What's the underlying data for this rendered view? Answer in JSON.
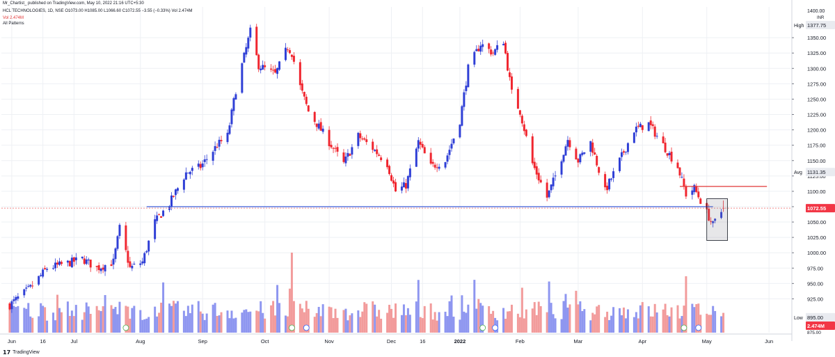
{
  "header": {
    "published_line": "Mr_Chartist_ published on TradingView.com, May 10, 2022 21:16 UTC+5:30",
    "symbol_line": "HCL TECHNOLOGIES, 1D, NSE  O1073.00 H1085.00 L1066.60 C1072.55 −3.55 (−0.33%)  Vol 2.474M",
    "volume_line": "Vol  2.474M",
    "indicator_line": "All Patterns"
  },
  "price_axis": {
    "currency": "INR",
    "currency_top": "1400.00",
    "high_label": "High",
    "high_value": "1377.75",
    "avg_label": "Avg",
    "avg_value": "1131.35",
    "low_label": "Low",
    "low_value": "895.00",
    "last_price": "1072.55",
    "last_volume": "2.474M",
    "below_low": "875.00"
  },
  "footer": {
    "brand": "TradingView"
  },
  "colors": {
    "up": "#2f3fd6",
    "down": "#f0262f",
    "vol_up": "#8e96f0",
    "vol_down": "#f29b9b",
    "support_line": "#3b5bd8",
    "resistance_line": "#e23636",
    "last_price_line": "#f28b8b",
    "grid": "#eef0f4"
  },
  "chart_data": {
    "type": "candlestick",
    "title": "HCL TECHNOLOGIES, 1D, NSE",
    "ylim": [
      870,
      1400
    ],
    "yticks": [
      875,
      895,
      925,
      950,
      975,
      1000,
      1025,
      1050,
      1075,
      1100,
      1125,
      1150,
      1175,
      1200,
      1225,
      1250,
      1275,
      1300,
      1325,
      1350,
      1377.75
    ],
    "xticks": [
      "Jun",
      "16",
      "Jul",
      "Aug",
      "Sep",
      "Oct",
      "Nov",
      "Dec",
      "16",
      "2022",
      "Feb",
      "Mar",
      "Apr",
      "May",
      "Jun"
    ],
    "series": [
      {
        "name": "close",
        "anchors": [
          [
            "2021-05-31",
            915
          ],
          [
            "2021-06-10",
            943
          ],
          [
            "2021-06-18",
            975
          ],
          [
            "2021-06-28",
            983
          ],
          [
            "2021-07-05",
            990
          ],
          [
            "2021-07-12",
            975
          ],
          [
            "2021-07-20",
            985
          ],
          [
            "2021-07-23",
            1040
          ],
          [
            "2021-07-28",
            975
          ],
          [
            "2021-08-03",
            985
          ],
          [
            "2021-08-09",
            1050
          ],
          [
            "2021-08-16",
            1080
          ],
          [
            "2021-08-24",
            1130
          ],
          [
            "2021-08-31",
            1140
          ],
          [
            "2021-09-08",
            1175
          ],
          [
            "2021-09-13",
            1190
          ],
          [
            "2021-09-17",
            1265
          ],
          [
            "2021-09-24",
            1360
          ],
          [
            "2021-09-28",
            1305
          ],
          [
            "2021-10-06",
            1290
          ],
          [
            "2021-10-12",
            1335
          ],
          [
            "2021-10-14",
            1325
          ],
          [
            "2021-10-18",
            1270
          ],
          [
            "2021-10-22",
            1230
          ],
          [
            "2021-11-01",
            1180
          ],
          [
            "2021-11-08",
            1145
          ],
          [
            "2021-11-15",
            1190
          ],
          [
            "2021-11-22",
            1170
          ],
          [
            "2021-11-29",
            1145
          ],
          [
            "2021-12-03",
            1100
          ],
          [
            "2021-12-08",
            1110
          ],
          [
            "2021-12-14",
            1180
          ],
          [
            "2021-12-20",
            1140
          ],
          [
            "2021-12-27",
            1150
          ],
          [
            "2022-01-03",
            1215
          ],
          [
            "2022-01-07",
            1300
          ],
          [
            "2022-01-13",
            1340
          ],
          [
            "2022-01-19",
            1325
          ],
          [
            "2022-01-24",
            1345
          ],
          [
            "2022-01-28",
            1260
          ],
          [
            "2022-02-01",
            1230
          ],
          [
            "2022-02-07",
            1145
          ],
          [
            "2022-02-14",
            1090
          ],
          [
            "2022-02-18",
            1125
          ],
          [
            "2022-02-24",
            1185
          ],
          [
            "2022-03-01",
            1150
          ],
          [
            "2022-03-07",
            1180
          ],
          [
            "2022-03-14",
            1100
          ],
          [
            "2022-03-21",
            1150
          ],
          [
            "2022-03-28",
            1200
          ],
          [
            "2022-04-04",
            1210
          ],
          [
            "2022-04-11",
            1175
          ],
          [
            "2022-04-18",
            1140
          ],
          [
            "2022-04-22",
            1095
          ],
          [
            "2022-04-26",
            1105
          ],
          [
            "2022-05-02",
            1065
          ],
          [
            "2022-05-05",
            1045
          ],
          [
            "2022-05-10",
            1072.55
          ]
        ]
      },
      {
        "name": "volume",
        "max_m": 10.0,
        "last_m": 2.474
      }
    ],
    "annotations": {
      "support_line": {
        "value": 1075,
        "from": "2021-08-05",
        "to": "2022-05-05"
      },
      "resistance_line": {
        "value": 1108,
        "from": "2022-04-19",
        "to": "2022-05-31"
      },
      "last_price_line": {
        "value": 1072.55
      },
      "highlight_box": {
        "from": "2022-05-02",
        "to": "2022-05-12",
        "low": 1020,
        "high": 1088
      }
    }
  }
}
